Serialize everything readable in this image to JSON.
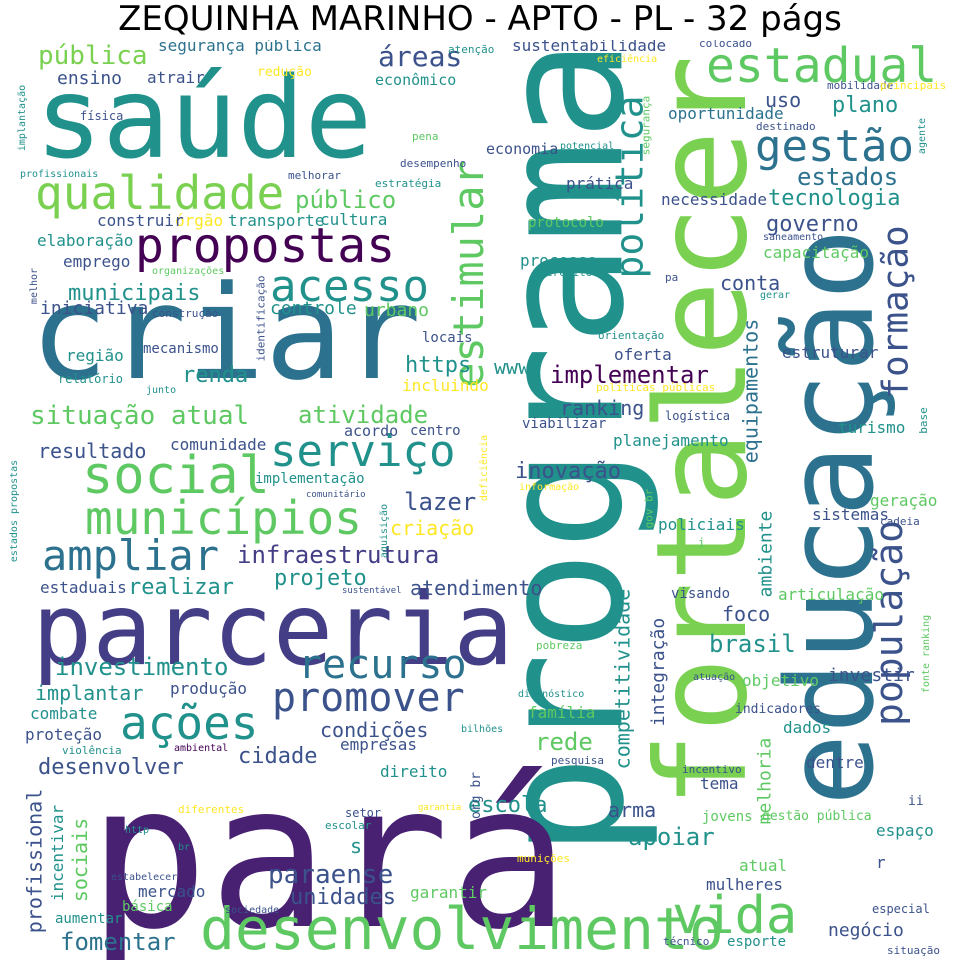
{
  "title": "ZEQUINHA MARINHO - APTO - PL - 32 págs",
  "palette": [
    "#440154",
    "#3b528b",
    "#21918c",
    "#5ec962",
    "#fde725"
  ],
  "words": [
    {
      "text": "saúde",
      "color": "#21918c"
    },
    {
      "text": "programa",
      "color": "#21918c"
    },
    {
      "text": "pará",
      "color": "#482173"
    },
    {
      "text": "criar",
      "color": "#2c728e"
    },
    {
      "text": "parceria",
      "color": "#433e85"
    },
    {
      "text": "educação",
      "color": "#2c728e"
    },
    {
      "text": "fortalecer",
      "color": "#7ad151"
    },
    {
      "text": "desenvolvimento",
      "color": "#5ec962"
    },
    {
      "text": "propostas",
      "color": "#440154"
    },
    {
      "text": "qualidade",
      "color": "#7ad151"
    },
    {
      "text": "estadual",
      "color": "#5ec962"
    },
    {
      "text": "gestão",
      "color": "#2c728e"
    },
    {
      "text": "estimular",
      "color": "#5ec962"
    },
    {
      "text": "política",
      "color": "#21918c"
    },
    {
      "text": "acesso",
      "color": "#21918c"
    },
    {
      "text": "social",
      "color": "#5ec962"
    },
    {
      "text": "serviço",
      "color": "#21918c"
    },
    {
      "text": "municípios",
      "color": "#5ec962"
    },
    {
      "text": "ampliar",
      "color": "#2c728e"
    },
    {
      "text": "recurso",
      "color": "#2c728e"
    },
    {
      "text": "promover",
      "color": "#3b528b"
    },
    {
      "text": "ações",
      "color": "#21918c"
    },
    {
      "text": "vida",
      "color": "#5ec962"
    },
    {
      "text": "população",
      "color": "#3b528b"
    },
    {
      "text": "formação",
      "color": "#3b528b"
    },
    {
      "text": "infraestrutura",
      "color": "#433e85"
    },
    {
      "text": "situação atual",
      "color": "#5ec962"
    },
    {
      "text": "investimento",
      "color": "#21918c"
    },
    {
      "text": "fomentar",
      "color": "#2c728e"
    },
    {
      "text": "unidades",
      "color": "#3b528b"
    },
    {
      "text": "paraense",
      "color": "#3b528b"
    },
    {
      "text": "pública",
      "color": "#7ad151"
    },
    {
      "text": "segurança pública",
      "color": "#2c728e"
    },
    {
      "text": "áreas",
      "color": "#3b528b"
    },
    {
      "text": "sustentabilidade",
      "color": "#3b528b"
    },
    {
      "text": "ensino",
      "color": "#3b528b"
    },
    {
      "text": "atrair",
      "color": "#3b528b"
    },
    {
      "text": "redução",
      "color": "#fde725"
    },
    {
      "text": "econômico",
      "color": "#21918c"
    },
    {
      "text": "uso",
      "color": "#3b528b"
    },
    {
      "text": "plano",
      "color": "#21918c"
    },
    {
      "text": "oportunidade",
      "color": "#2c728e"
    },
    {
      "text": "estados",
      "color": "#2c728e"
    },
    {
      "text": "tecnologia",
      "color": "#21918c"
    },
    {
      "text": "público",
      "color": "#5ec962"
    },
    {
      "text": "governo",
      "color": "#3b528b"
    },
    {
      "text": "necessidade",
      "color": "#3b528b"
    },
    {
      "text": "prática",
      "color": "#3b528b"
    },
    {
      "text": "economia",
      "color": "#3b528b"
    },
    {
      "text": "cultura",
      "color": "#21918c"
    },
    {
      "text": "transporte",
      "color": "#21918c"
    },
    {
      "text": "órgão",
      "color": "#fde725"
    },
    {
      "text": "construir",
      "color": "#3b528b"
    },
    {
      "text": "elaboração",
      "color": "#21918c"
    },
    {
      "text": "emprego",
      "color": "#3b528b"
    },
    {
      "text": "capacitação",
      "color": "#5ec962"
    },
    {
      "text": "processo",
      "color": "#21918c"
    },
    {
      "text": "protocolo",
      "color": "#5ec962"
    },
    {
      "text": "conta",
      "color": "#3b528b"
    },
    {
      "text": "municipais",
      "color": "#21918c"
    },
    {
      "text": "iniciativa",
      "color": "#3b528b"
    },
    {
      "text": "controle",
      "color": "#21918c"
    },
    {
      "text": "urbano",
      "color": "#5ec962"
    },
    {
      "text": "locais",
      "color": "#3b528b"
    },
    {
      "text": "implementar",
      "color": "#440154"
    },
    {
      "text": "https",
      "color": "#21918c"
    },
    {
      "text": "www",
      "color": "#21918c"
    },
    {
      "text": "renda",
      "color": "#21918c"
    },
    {
      "text": "incluindo",
      "color": "#fde725"
    },
    {
      "text": "atividade",
      "color": "#5ec962"
    },
    {
      "text": "ranking",
      "color": "#3b528b"
    },
    {
      "text": "oferta",
      "color": "#3b528b"
    },
    {
      "text": "estruturar",
      "color": "#3b528b"
    },
    {
      "text": "equipamentos",
      "color": "#2c728e"
    },
    {
      "text": "região",
      "color": "#21918c"
    },
    {
      "text": "mecanismo",
      "color": "#3b528b"
    },
    {
      "text": "relatório",
      "color": "#21918c"
    },
    {
      "text": "resultado",
      "color": "#3b528b"
    },
    {
      "text": "comunidade",
      "color": "#3b528b"
    },
    {
      "text": "acordo",
      "color": "#3b528b"
    },
    {
      "text": "centro",
      "color": "#3b528b"
    },
    {
      "text": "planejamento",
      "color": "#21918c"
    },
    {
      "text": "viabilizar",
      "color": "#3b528b"
    },
    {
      "text": "turismo",
      "color": "#21918c"
    },
    {
      "text": "logística",
      "color": "#3b528b"
    },
    {
      "text": "inovação",
      "color": "#3b528b"
    },
    {
      "text": "implementação",
      "color": "#21918c"
    },
    {
      "text": "lazer",
      "color": "#3b528b"
    },
    {
      "text": "criação",
      "color": "#fde725"
    },
    {
      "text": "ambiente",
      "color": "#21918c"
    },
    {
      "text": "sistemas",
      "color": "#3b528b"
    },
    {
      "text": "geração",
      "color": "#5ec962"
    },
    {
      "text": "policiais",
      "color": "#21918c"
    },
    {
      "text": "realizar",
      "color": "#21918c"
    },
    {
      "text": "projeto",
      "color": "#21918c"
    },
    {
      "text": "atendimento",
      "color": "#3b528b"
    },
    {
      "text": "estaduais",
      "color": "#3b528b"
    },
    {
      "text": "competitividade",
      "color": "#21918c"
    },
    {
      "text": "integração",
      "color": "#3b528b"
    },
    {
      "text": "foco",
      "color": "#3b528b"
    },
    {
      "text": "brasil",
      "color": "#21918c"
    },
    {
      "text": "visando",
      "color": "#3b528b"
    },
    {
      "text": "articulação",
      "color": "#5ec962"
    },
    {
      "text": "implantar",
      "color": "#21918c"
    },
    {
      "text": "produção",
      "color": "#3b528b"
    },
    {
      "text": "condições",
      "color": "#3b528b"
    },
    {
      "text": "combate",
      "color": "#21918c"
    },
    {
      "text": "proteção",
      "color": "#3b528b"
    },
    {
      "text": "cidade",
      "color": "#3b528b"
    },
    {
      "text": "empresas",
      "color": "#3b528b"
    },
    {
      "text": "rede",
      "color": "#5ec962"
    },
    {
      "text": "objetivo",
      "color": "#5ec962"
    },
    {
      "text": "investir",
      "color": "#3b528b"
    },
    {
      "text": "indicadores",
      "color": "#3b528b"
    },
    {
      "text": "dados",
      "color": "#21918c"
    },
    {
      "text": "família",
      "color": "#5ec962"
    },
    {
      "text": "desenvolver",
      "color": "#3b528b"
    },
    {
      "text": "direito",
      "color": "#21918c"
    },
    {
      "text": "escola",
      "color": "#21918c"
    },
    {
      "text": "dentre",
      "color": "#3b528b"
    },
    {
      "text": "melhoria",
      "color": "#5ec962"
    },
    {
      "text": "tema",
      "color": "#3b528b"
    },
    {
      "text": "arma",
      "color": "#3b528b"
    },
    {
      "text": "apoiar",
      "color": "#21918c"
    },
    {
      "text": "jovens",
      "color": "#5ec962"
    },
    {
      "text": "gestão pública",
      "color": "#5ec962"
    },
    {
      "text": "espaço",
      "color": "#21918c"
    },
    {
      "text": "atual",
      "color": "#5ec962"
    },
    {
      "text": "mulheres",
      "color": "#3b528b"
    },
    {
      "text": "profissional",
      "color": "#3b528b"
    },
    {
      "text": "incentivar",
      "color": "#21918c"
    },
    {
      "text": "sociais",
      "color": "#5ec962"
    },
    {
      "text": "mercado",
      "color": "#3b528b"
    },
    {
      "text": "básica",
      "color": "#5ec962"
    },
    {
      "text": "aumentar",
      "color": "#21918c"
    },
    {
      "text": "garantir",
      "color": "#5ec962"
    },
    {
      "text": "negócio",
      "color": "#3b528b"
    },
    {
      "text": "esporte",
      "color": "#21918c"
    },
    {
      "text": "especial",
      "color": "#3b528b"
    },
    {
      "text": "situação",
      "color": "#3b528b"
    },
    {
      "text": "técnico",
      "color": "#3b528b"
    },
    {
      "text": "fonte ranking",
      "color": "#5ec962"
    },
    {
      "text": "orientação",
      "color": "#21918c"
    },
    {
      "text": "políticas públicas",
      "color": "#fde725"
    },
    {
      "text": "saneamento",
      "color": "#3b528b"
    },
    {
      "text": "destinado",
      "color": "#3b528b"
    },
    {
      "text": "mobilidade",
      "color": "#3b528b"
    },
    {
      "text": "principais",
      "color": "#fde725"
    },
    {
      "text": "eficiência",
      "color": "#fde725"
    },
    {
      "text": "colocado",
      "color": "#3b528b"
    },
    {
      "text": "atenção",
      "color": "#21918c"
    },
    {
      "text": "agente",
      "color": "#21918c"
    },
    {
      "text": "potencial",
      "color": "#21918c"
    },
    {
      "text": "segurança",
      "color": "#5ec962"
    },
    {
      "text": "pena",
      "color": "#5ec962"
    },
    {
      "text": "desempenho",
      "color": "#3b528b"
    },
    {
      "text": "melhorar",
      "color": "#3b528b"
    },
    {
      "text": "estratégia",
      "color": "#21918c"
    },
    {
      "text": "física",
      "color": "#3b528b"
    },
    {
      "text": "implantação",
      "color": "#21918c"
    },
    {
      "text": "profissionais",
      "color": "#21918c"
    },
    {
      "text": "melhor",
      "color": "#3b528b"
    },
    {
      "text": "organizações",
      "color": "#5ec962"
    },
    {
      "text": "construção",
      "color": "#3b528b"
    },
    {
      "text": "identificação",
      "color": "#3b528b"
    },
    {
      "text": "crédito",
      "color": "#21918c"
    },
    {
      "text": "pa",
      "color": "#3b528b"
    },
    {
      "text": "gerar",
      "color": "#21918c"
    },
    {
      "text": "junto",
      "color": "#21918c"
    },
    {
      "text": "deficiência",
      "color": "#fde725"
    },
    {
      "text": "informação",
      "color": "#fde725"
    },
    {
      "text": "comunitário",
      "color": "#3b528b"
    },
    {
      "text": "sustentável",
      "color": "#3b528b"
    },
    {
      "text": "aquisição",
      "color": "#21918c"
    },
    {
      "text": "estados propostas",
      "color": "#21918c"
    },
    {
      "text": "gov br",
      "color": "#5ec962"
    },
    {
      "text": "cadeia",
      "color": "#3b528b"
    },
    {
      "text": "base",
      "color": "#21918c"
    },
    {
      "text": "pobreza",
      "color": "#5ec962"
    },
    {
      "text": "diagnóstico",
      "color": "#21918c"
    },
    {
      "text": "atuação",
      "color": "#3b528b"
    },
    {
      "text": "bilhões",
      "color": "#21918c"
    },
    {
      "text": "violência",
      "color": "#21918c"
    },
    {
      "text": "ambiental",
      "color": "#440154"
    },
    {
      "text": "pesquisa",
      "color": "#3b528b"
    },
    {
      "text": "incentivo",
      "color": "#3b528b"
    },
    {
      "text": "org br",
      "color": "#3b528b"
    },
    {
      "text": "garantia",
      "color": "#fde725"
    },
    {
      "text": "diferentes",
      "color": "#fde725"
    },
    {
      "text": "setor",
      "color": "#3b528b"
    },
    {
      "text": "escolar",
      "color": "#21918c"
    },
    {
      "text": "http",
      "color": "#21918c"
    },
    {
      "text": "br",
      "color": "#21918c"
    },
    {
      "text": "munições",
      "color": "#fde725"
    },
    {
      "text": "estabelecer",
      "color": "#3b528b"
    },
    {
      "text": "sociedade",
      "color": "#3b528b"
    },
    {
      "text": "s",
      "color": "#21918c"
    },
    {
      "text": "r",
      "color": "#3b528b"
    },
    {
      "text": "ii",
      "color": "#3b528b"
    },
    {
      "text": "i",
      "color": "#5ec962"
    }
  ]
}
